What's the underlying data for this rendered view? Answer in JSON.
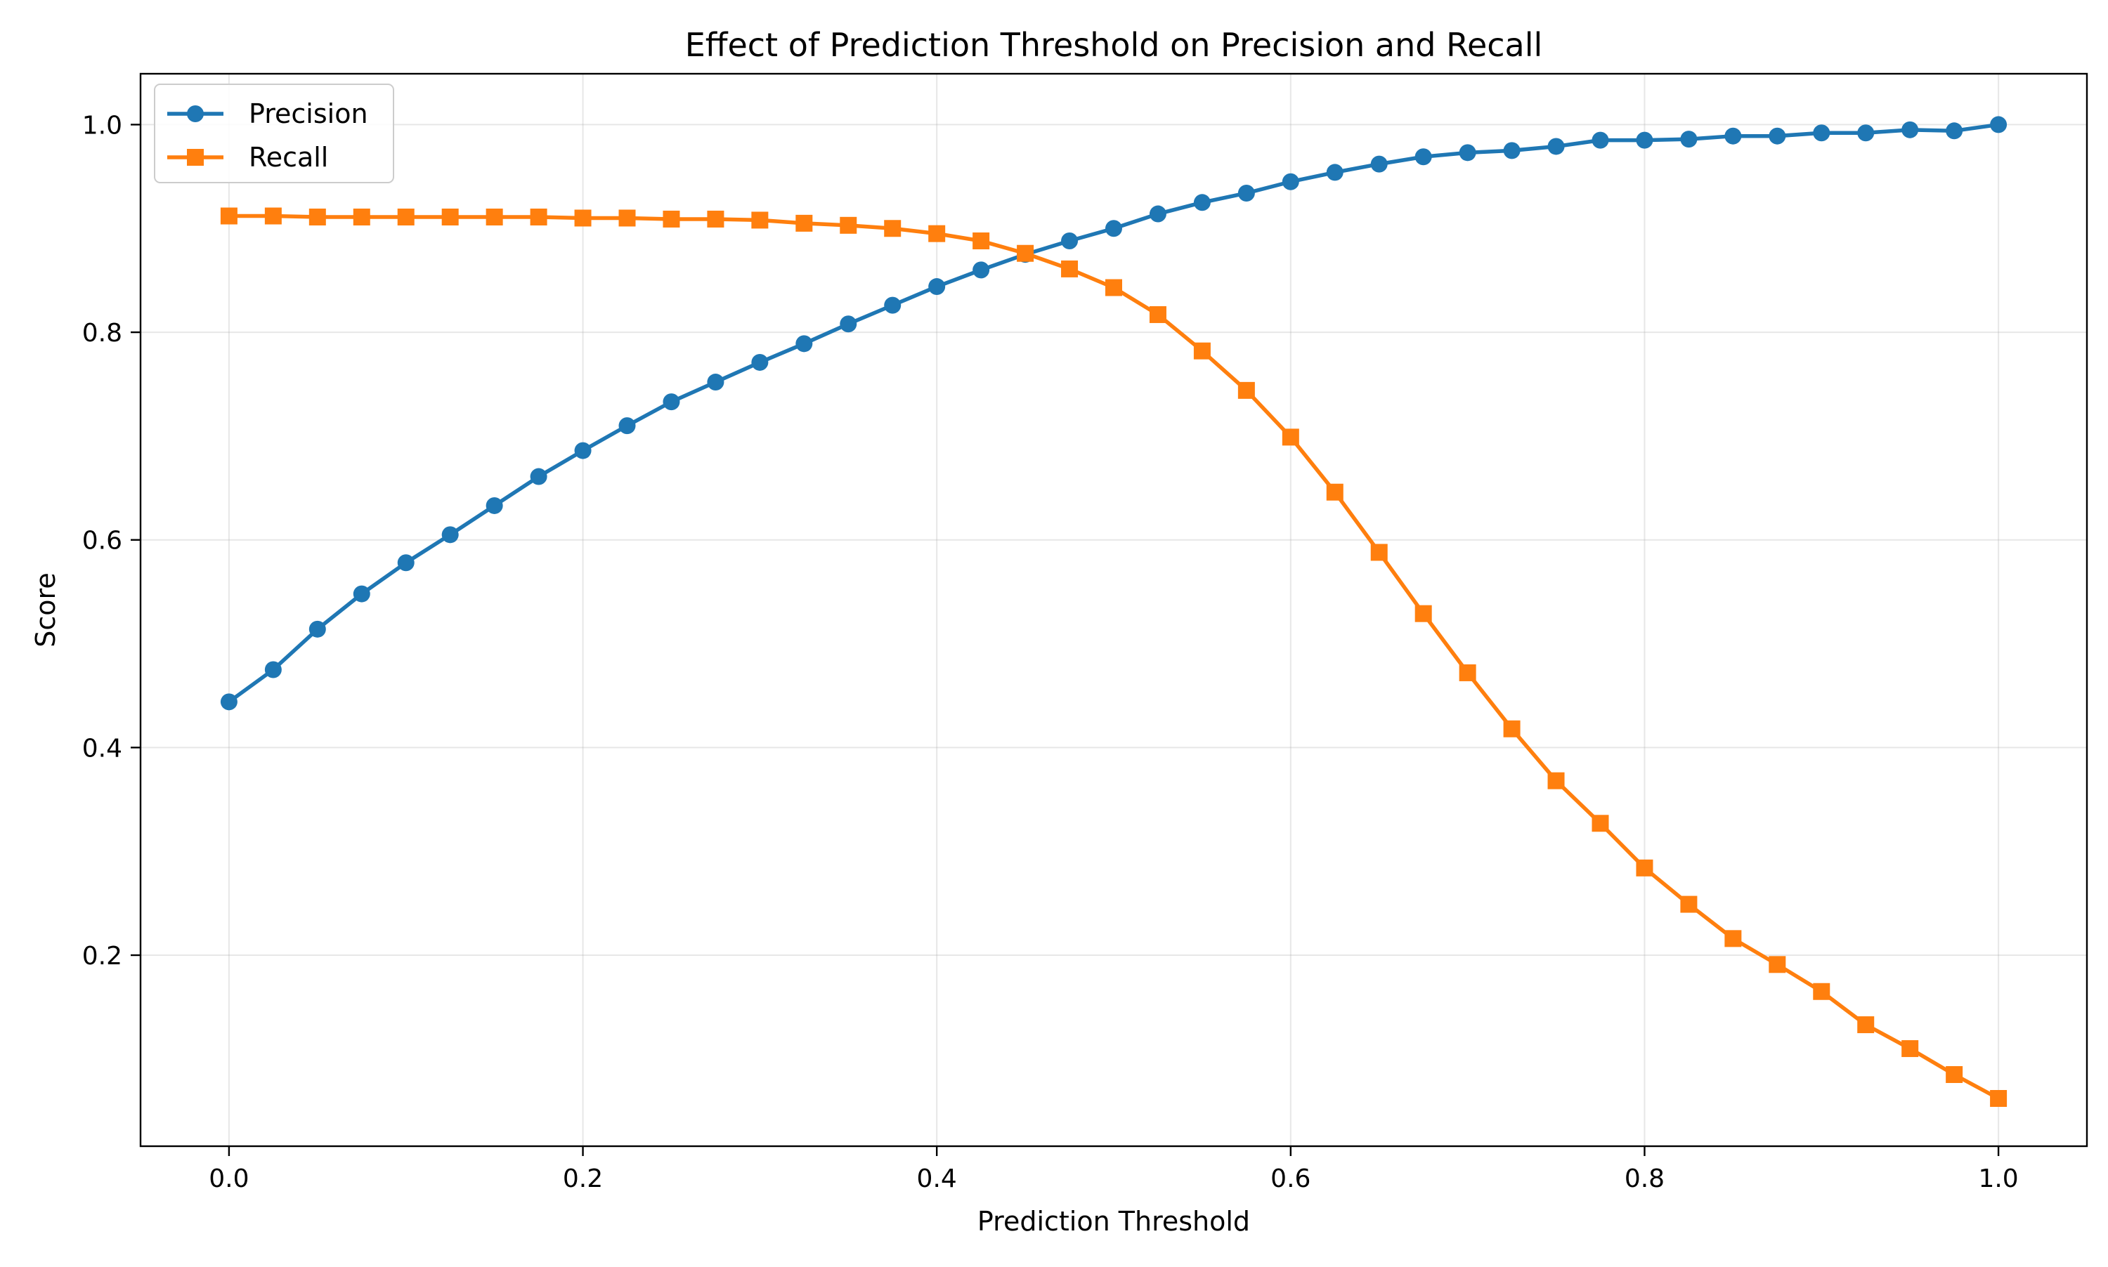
{
  "chart_data": {
    "type": "line",
    "title": "Effect of Prediction Threshold on Precision and Recall",
    "xlabel": "Prediction Threshold",
    "ylabel": "Score",
    "xlim": [
      -0.05,
      1.05
    ],
    "ylim": [
      0.016,
      1.049
    ],
    "xticks": [
      0.0,
      0.2,
      0.4,
      0.6,
      0.8,
      1.0
    ],
    "xtick_labels": [
      "0.0",
      "0.2",
      "0.4",
      "0.6",
      "0.8",
      "1.0"
    ],
    "yticks": [
      0.2,
      0.4,
      0.6,
      0.8,
      1.0
    ],
    "ytick_labels": [
      "0.2",
      "0.4",
      "0.6",
      "0.8",
      "1.0"
    ],
    "grid": true,
    "legend_position": "top-left",
    "x": [
      0.0,
      0.025,
      0.05,
      0.075,
      0.1,
      0.125,
      0.15,
      0.175,
      0.2,
      0.225,
      0.25,
      0.275,
      0.3,
      0.325,
      0.35,
      0.375,
      0.4,
      0.425,
      0.45,
      0.475,
      0.5,
      0.525,
      0.55,
      0.575,
      0.6,
      0.625,
      0.65,
      0.675,
      0.7,
      0.725,
      0.75,
      0.775,
      0.8,
      0.825,
      0.85,
      0.875,
      0.9,
      0.925,
      0.95,
      0.975,
      1.0
    ],
    "series": [
      {
        "name": "Precision",
        "color": "#1f77b4",
        "marker": "circle",
        "values": [
          0.444,
          0.475,
          0.514,
          0.548,
          0.578,
          0.605,
          0.633,
          0.661,
          0.686,
          0.71,
          0.733,
          0.752,
          0.771,
          0.789,
          0.808,
          0.826,
          0.844,
          0.86,
          0.875,
          0.888,
          0.9,
          0.914,
          0.925,
          0.934,
          0.945,
          0.954,
          0.962,
          0.969,
          0.973,
          0.975,
          0.979,
          0.985,
          0.985,
          0.986,
          0.989,
          0.989,
          0.992,
          0.992,
          0.995,
          0.994,
          1.0
        ]
      },
      {
        "name": "Recall",
        "color": "#ff7f0e",
        "marker": "square",
        "values": [
          0.912,
          0.912,
          0.911,
          0.911,
          0.911,
          0.911,
          0.911,
          0.911,
          0.91,
          0.91,
          0.909,
          0.909,
          0.908,
          0.905,
          0.903,
          0.9,
          0.895,
          0.888,
          0.876,
          0.861,
          0.843,
          0.817,
          0.782,
          0.744,
          0.699,
          0.646,
          0.588,
          0.529,
          0.472,
          0.418,
          0.368,
          0.327,
          0.284,
          0.249,
          0.216,
          0.191,
          0.165,
          0.133,
          0.11,
          0.085,
          0.062
        ]
      }
    ]
  }
}
